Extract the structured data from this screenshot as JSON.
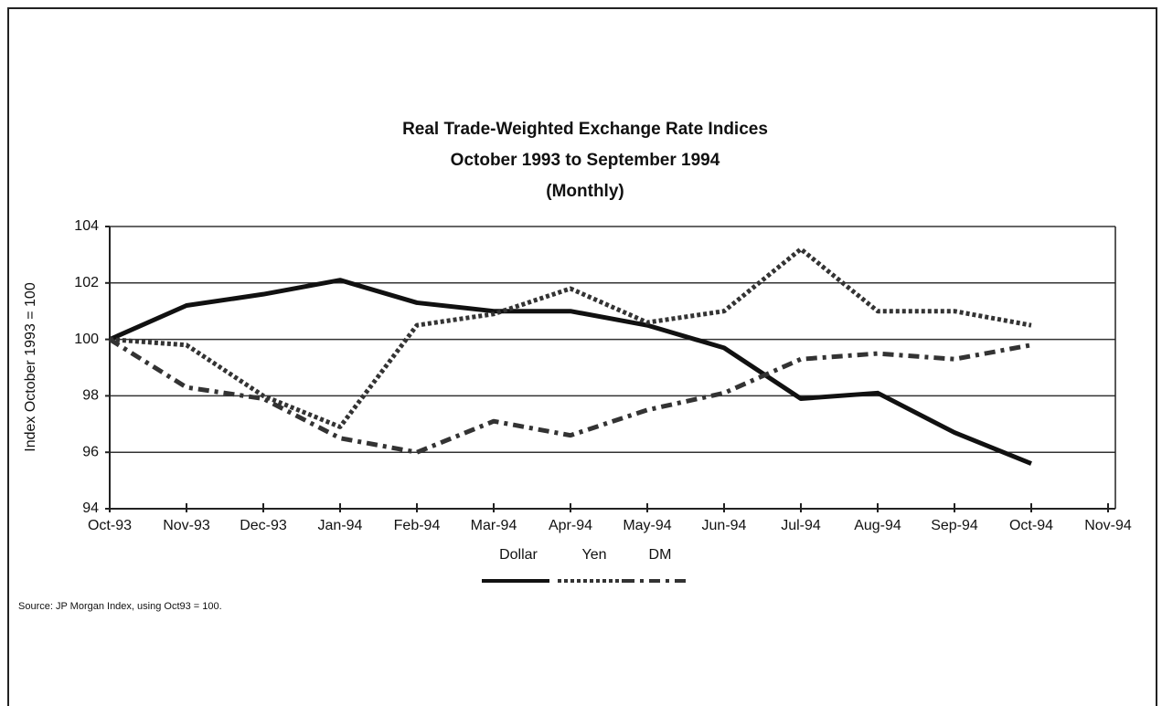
{
  "chart_data": {
    "type": "line",
    "title": "Real Trade-Weighted Exchange Rate Indices",
    "subtitle": [
      "October 1993 to September 1994",
      "(Monthly)"
    ],
    "y_label": "Index October 1993 = 100",
    "source": "Source:  JP Morgan Index, using Oct93 = 100.",
    "categories": [
      "Oct-93",
      "Nov-93",
      "Dec-93",
      "Jan-94",
      "Feb-94",
      "Mar-94",
      "Apr-94",
      "May-94",
      "Jun-94",
      "Jul-94",
      "Aug-94",
      "Sep-94",
      "Oct-94",
      "Nov-94"
    ],
    "series": [
      {
        "name": "Dollar",
        "color": "#111111",
        "line_style": "solid",
        "values": [
          100,
          101.2,
          101.6,
          102.1,
          101.3,
          101.0,
          101.0,
          100.5,
          99.7,
          97.9,
          98.1,
          96.7,
          95.6,
          null
        ]
      },
      {
        "name": "Yen",
        "color": "#333333",
        "line_style": "dotted",
        "values": [
          100,
          99.8,
          98.0,
          96.9,
          100.5,
          100.9,
          101.8,
          100.6,
          101.0,
          103.2,
          101.0,
          101.0,
          100.5,
          null
        ]
      },
      {
        "name": "DM",
        "color": "#333333",
        "line_style": "dashdot",
        "values": [
          100,
          98.3,
          97.9,
          96.5,
          96.0,
          97.1,
          96.6,
          97.5,
          98.1,
          99.3,
          99.5,
          99.3,
          99.8,
          null
        ]
      }
    ],
    "ylim": [
      94,
      104
    ],
    "yticks": [
      94,
      96,
      98,
      100,
      102,
      104
    ],
    "grid": true,
    "legend": "bottom"
  }
}
